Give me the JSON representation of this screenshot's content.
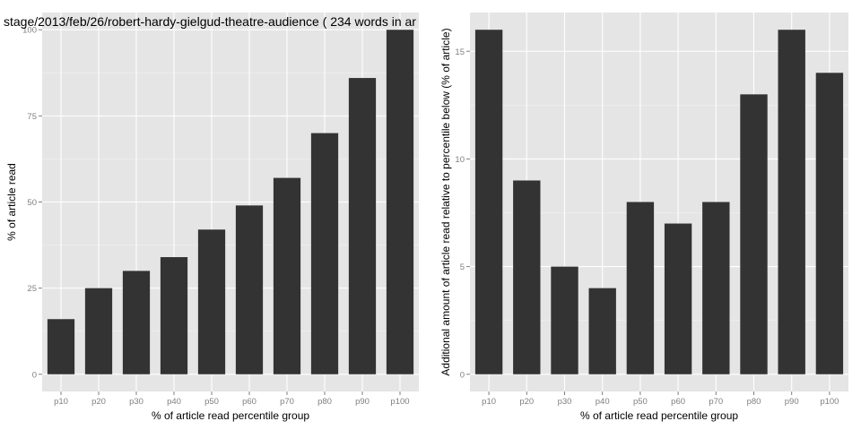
{
  "chart_data": [
    {
      "type": "bar",
      "title": "stage/2013/feb/26/robert-hardy-gielgud-theatre-audience ( 234 words in ar",
      "xlabel": "% of article read percentile group",
      "ylabel": "% of article read",
      "categories": [
        "p10",
        "p20",
        "p30",
        "p40",
        "p50",
        "p60",
        "p70",
        "p80",
        "p90",
        "p100"
      ],
      "values": [
        16,
        25,
        30,
        34,
        42,
        49,
        57,
        70,
        86,
        100
      ],
      "ylim": [
        -5,
        105
      ],
      "yticks": [
        0,
        25,
        50,
        75,
        100
      ],
      "grid": true,
      "colors": {
        "panel": "#e5e5e5",
        "bar": "#333333"
      }
    },
    {
      "type": "bar",
      "title": "",
      "xlabel": "% of article read percentile group",
      "ylabel": "Additional amount of article read relative to percentile below (% of article)",
      "categories": [
        "p10",
        "p20",
        "p30",
        "p40",
        "p50",
        "p60",
        "p70",
        "p80",
        "p90",
        "p100"
      ],
      "values": [
        16,
        9,
        5,
        4,
        8,
        7,
        8,
        13,
        16,
        14
      ],
      "ylim": [
        -0.8,
        16.8
      ],
      "yticks": [
        0,
        5,
        10,
        15
      ],
      "grid": true,
      "colors": {
        "panel": "#e5e5e5",
        "bar": "#333333"
      }
    }
  ]
}
